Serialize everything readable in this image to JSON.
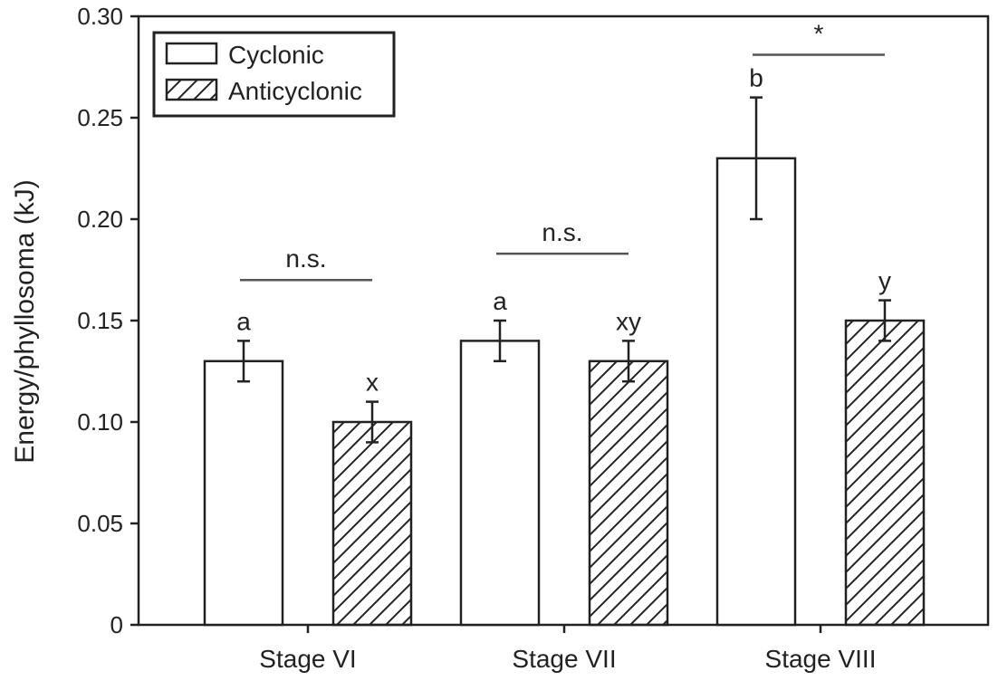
{
  "chart_data": {
    "type": "bar",
    "categories": [
      "Stage VI",
      "Stage VII",
      "Stage VIII"
    ],
    "series": [
      {
        "name": "Cyclonic",
        "pattern": "open",
        "values": [
          0.13,
          0.14,
          0.23
        ],
        "errors": [
          0.01,
          0.01,
          0.03
        ],
        "letters": [
          "a",
          "a",
          "b"
        ]
      },
      {
        "name": "Anticyclonic",
        "pattern": "hatched",
        "values": [
          0.1,
          0.13,
          0.15
        ],
        "errors": [
          0.01,
          0.01,
          0.01
        ],
        "letters": [
          "x",
          "xy",
          "y"
        ]
      }
    ],
    "ylabel": "Energy/phyllosoma (kJ)",
    "xlabel": "",
    "ylim": [
      0,
      0.3
    ],
    "yticks": [
      {
        "value": 0,
        "label": "0"
      },
      {
        "value": 0.05,
        "label": "0.05"
      },
      {
        "value": 0.1,
        "label": "0.10"
      },
      {
        "value": 0.15,
        "label": "0.15"
      },
      {
        "value": 0.2,
        "label": "0.20"
      },
      {
        "value": 0.25,
        "label": "0.25"
      },
      {
        "value": 0.3,
        "label": "0.30"
      }
    ],
    "significance": [
      {
        "category": "Stage VI",
        "label": "n.s.",
        "y": 0.17
      },
      {
        "category": "Stage VII",
        "label": "n.s.",
        "y": 0.183
      },
      {
        "category": "Stage VIII",
        "label": "*",
        "y": 0.281
      }
    ],
    "legend_position": "top-left",
    "grid": false
  }
}
